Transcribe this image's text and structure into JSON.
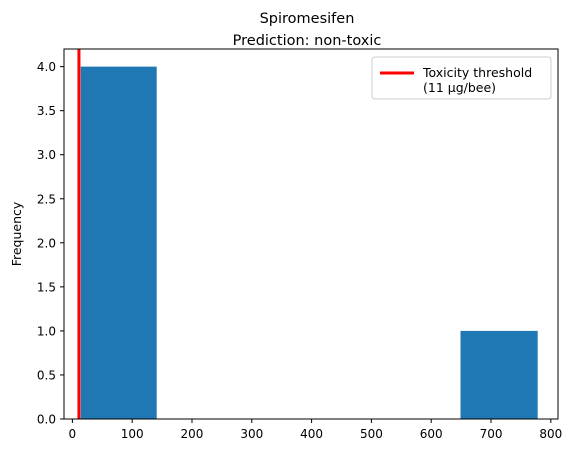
{
  "chart_data": {
    "type": "bar",
    "title": "Spiromesifen",
    "subtitle": "Prediction: non-toxic",
    "xlabel": "",
    "ylabel": "Frequency",
    "xlim": [
      -14,
      812
    ],
    "ylim": [
      0,
      4.2
    ],
    "x_ticks": [
      0,
      100,
      200,
      300,
      400,
      500,
      600,
      700,
      800
    ],
    "y_ticks": [
      0.0,
      0.5,
      1.0,
      1.5,
      2.0,
      2.5,
      3.0,
      3.5,
      4.0
    ],
    "bins": [
      {
        "x0": 14,
        "x1": 141,
        "count": 4
      },
      {
        "x0": 141,
        "x1": 268,
        "count": 0
      },
      {
        "x0": 268,
        "x1": 395,
        "count": 0
      },
      {
        "x0": 395,
        "x1": 522,
        "count": 0
      },
      {
        "x0": 522,
        "x1": 649,
        "count": 0
      },
      {
        "x0": 649,
        "x1": 778,
        "count": 1
      }
    ],
    "bar_color": "#1f77b4",
    "threshold": {
      "value": 11,
      "color": "#ff0000"
    },
    "legend": {
      "position": "top-right",
      "line1": "Toxicity threshold",
      "line2": "(11 µg/bee)"
    },
    "grid": false
  }
}
